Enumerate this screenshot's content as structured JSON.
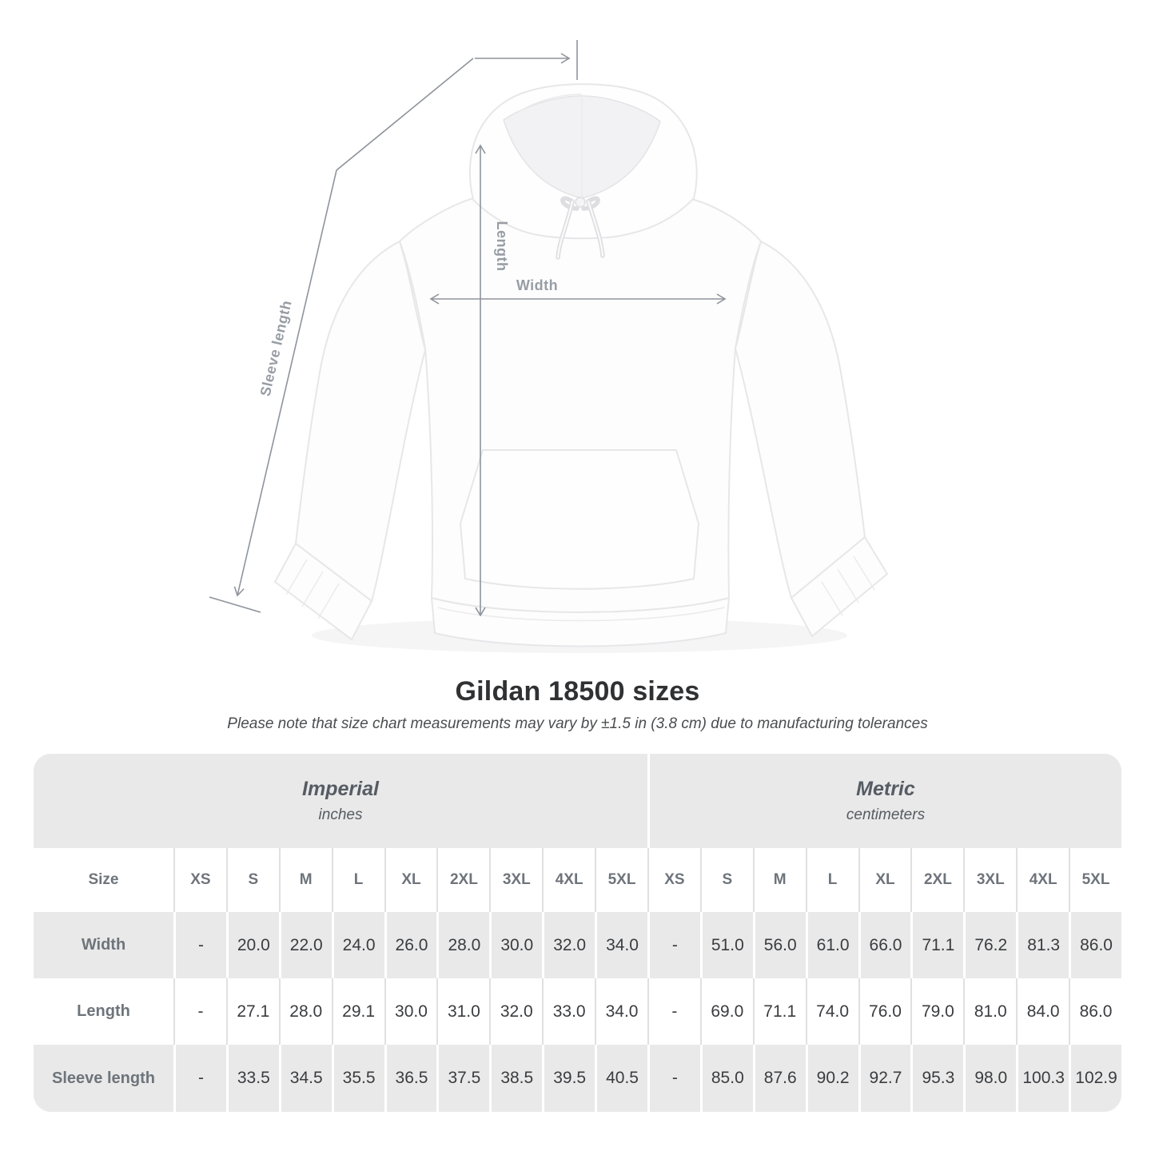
{
  "page": {
    "title": "Gildan 18500 sizes",
    "subtitle": "Please note that size chart measurements may vary by ±1.5 in (3.8 cm) due to manufacturing tolerances"
  },
  "diagram": {
    "labels": {
      "length": "Length",
      "width": "Width",
      "sleeve_length": "Sleeve length"
    }
  },
  "chart_data": {
    "type": "table",
    "title": "Gildan 18500 sizes",
    "note": "Please note that size chart measurements may vary by ±1.5 in (3.8 cm) due to manufacturing tolerances",
    "size_header": "Size",
    "sizes": [
      "XS",
      "S",
      "M",
      "L",
      "XL",
      "2XL",
      "3XL",
      "4XL",
      "5XL"
    ],
    "unit_groups": [
      {
        "label": "Imperial",
        "unit": "inches"
      },
      {
        "label": "Metric",
        "unit": "centimeters"
      }
    ],
    "rows": [
      {
        "label": "Width",
        "imperial": [
          "-",
          "20.0",
          "22.0",
          "24.0",
          "26.0",
          "28.0",
          "30.0",
          "32.0",
          "34.0"
        ],
        "metric": [
          "-",
          "51.0",
          "56.0",
          "61.0",
          "66.0",
          "71.1",
          "76.2",
          "81.3",
          "86.0"
        ]
      },
      {
        "label": "Length",
        "imperial": [
          "-",
          "27.1",
          "28.0",
          "29.1",
          "30.0",
          "31.0",
          "32.0",
          "33.0",
          "34.0"
        ],
        "metric": [
          "-",
          "69.0",
          "71.1",
          "74.0",
          "76.0",
          "79.0",
          "81.0",
          "84.0",
          "86.0"
        ]
      },
      {
        "label": "Sleeve length",
        "imperial": [
          "-",
          "33.5",
          "34.5",
          "35.5",
          "36.5",
          "37.5",
          "38.5",
          "39.5",
          "40.5"
        ],
        "metric": [
          "-",
          "85.0",
          "87.6",
          "90.2",
          "92.7",
          "95.3",
          "98.0",
          "100.3",
          "102.9"
        ]
      }
    ]
  },
  "colors": {
    "arrow": "#8e949b",
    "measure_label": "#979da4",
    "table_bg": "#e9e9e9",
    "table_stripe": "#ffffff",
    "header_text": "#6e747b",
    "value_text": "#3a3c3f",
    "title_text": "#2f3133"
  }
}
